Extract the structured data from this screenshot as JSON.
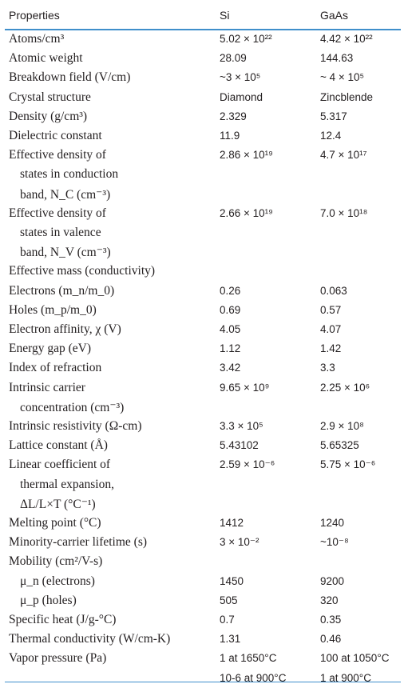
{
  "header": {
    "properties": "Properties",
    "si": "Si",
    "gaas": "GaAs"
  },
  "rows": [
    {
      "prop": "Atoms/cm³",
      "si": "5.02 × 10²²",
      "gaas": "4.42 × 10²²"
    },
    {
      "prop": "Atomic weight",
      "si": "28.09",
      "gaas": "144.63"
    },
    {
      "prop": "Breakdown field (V/cm)",
      "si": "~3 × 10⁵",
      "gaas": "~ 4 × 10⁵"
    },
    {
      "prop": "Crystal structure",
      "si": "Diamond",
      "gaas": "Zincblende"
    },
    {
      "prop": "Density (g/cm³)",
      "si": "2.329",
      "gaas": "5.317"
    },
    {
      "prop": "Dielectric constant",
      "si": "11.9",
      "gaas": "12.4"
    },
    {
      "prop": "Effective density of",
      "si": "2.86 × 10¹⁹",
      "gaas": "4.7 × 10¹⁷"
    },
    {
      "prop": "states in conduction",
      "si": "",
      "gaas": "",
      "indent": true
    },
    {
      "prop": "band, N_C (cm⁻³)",
      "si": "",
      "gaas": "",
      "indent": true
    },
    {
      "prop": "Effective density of",
      "si": "2.66 × 10¹⁹",
      "gaas": "7.0 × 10¹⁸"
    },
    {
      "prop": "states in valence",
      "si": "",
      "gaas": "",
      "indent": true
    },
    {
      "prop": "band, N_V (cm⁻³)",
      "si": "",
      "gaas": "",
      "indent": true
    },
    {
      "prop": "Effective mass (conductivity)",
      "si": "",
      "gaas": ""
    },
    {
      "prop": "Electrons (m_n/m_0)",
      "si": "0.26",
      "gaas": "0.063"
    },
    {
      "prop": "Holes (m_p/m_0)",
      "si": "0.69",
      "gaas": "0.57"
    },
    {
      "prop": "Electron affinity, χ (V)",
      "si": "4.05",
      "gaas": "4.07"
    },
    {
      "prop": "Energy gap (eV)",
      "si": "1.12",
      "gaas": "1.42"
    },
    {
      "prop": "Index of refraction",
      "si": "3.42",
      "gaas": "3.3"
    },
    {
      "prop": "Intrinsic carrier",
      "si": "9.65 × 10⁹",
      "gaas": "2.25 × 10⁶"
    },
    {
      "prop": "concentration (cm⁻³)",
      "si": "",
      "gaas": "",
      "indent": true
    },
    {
      "prop": "Intrinsic resistivity (Ω-cm)",
      "si": "3.3 × 10⁵",
      "gaas": "2.9 × 10⁸"
    },
    {
      "prop": "Lattice constant (Å)",
      "si": "5.43102",
      "gaas": "5.65325"
    },
    {
      "prop": "Linear coefficient of",
      "si": "2.59 × 10⁻⁶",
      "gaas": "5.75 × 10⁻⁶"
    },
    {
      "prop": "thermal expansion,",
      "si": "",
      "gaas": "",
      "indent": true
    },
    {
      "prop": "ΔL/L×T (°C⁻¹)",
      "si": "",
      "gaas": "",
      "indent": true
    },
    {
      "prop": "Melting point (°C)",
      "si": "1412",
      "gaas": "1240"
    },
    {
      "prop": "Minority-carrier lifetime (s)",
      "si": "3 × 10⁻²",
      "gaas": "~10⁻⁸"
    },
    {
      "prop": "Mobility (cm²/V-s)",
      "si": "",
      "gaas": ""
    },
    {
      "prop": "μ_n (electrons)",
      "si": "1450",
      "gaas": "9200",
      "indent": true
    },
    {
      "prop": "μ_p (holes)",
      "si": "505",
      "gaas": "320",
      "indent": true
    },
    {
      "prop": "Specific heat (J/g-°C)",
      "si": "0.7",
      "gaas": "0.35"
    },
    {
      "prop": "Thermal conductivity (W/cm-K)",
      "si": "1.31",
      "gaas": "0.46"
    },
    {
      "prop": "Vapor pressure (Pa)",
      "si": "1 at 1650°C",
      "gaas": "100 at 1050°C"
    },
    {
      "prop": "",
      "si": "10-6 at 900°C",
      "gaas": "1 at 900°C"
    }
  ]
}
